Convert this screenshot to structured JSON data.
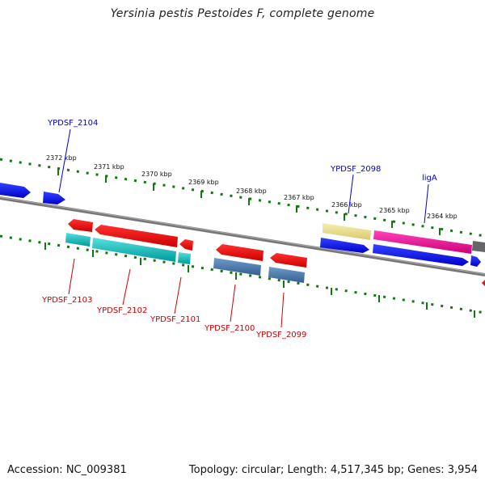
{
  "title": "Yersinia pestis Pestoides F, complete genome",
  "footer": {
    "accession": "Accession: NC_009381",
    "summary": "Topology: circular; Length: 4,517,345 bp; Genes: 3,954"
  },
  "ticks": [
    "2372 kbp",
    "2371 kbp",
    "2370 kbp",
    "2369 kbp",
    "2368 kbp",
    "2367 kbp",
    "2366 kbp",
    "2365 kbp",
    "2364 kbp"
  ],
  "gene_labels": {
    "top": [
      "YPDSF_2104",
      "YPDSF_2098",
      "ligA"
    ],
    "bottom": [
      "YPDSF_2103",
      "YPDSF_2102",
      "YPDSF_2101",
      "YPDSF_2100",
      "YPDSF_2099"
    ]
  },
  "colors": {
    "cds_forward": "#0000ee",
    "cds_reverse": "#ee0000",
    "gene_reverse": "#00bbbb",
    "gene_steelblue": "#4477aa",
    "gene_yellow": "#eedd88",
    "gene_magenta": "#ee1199",
    "gene_gray": "#666666",
    "tick_green": "#117711",
    "backbone": "#777777",
    "label_top": "#0000cc",
    "label_bottom": "#cc0000"
  }
}
